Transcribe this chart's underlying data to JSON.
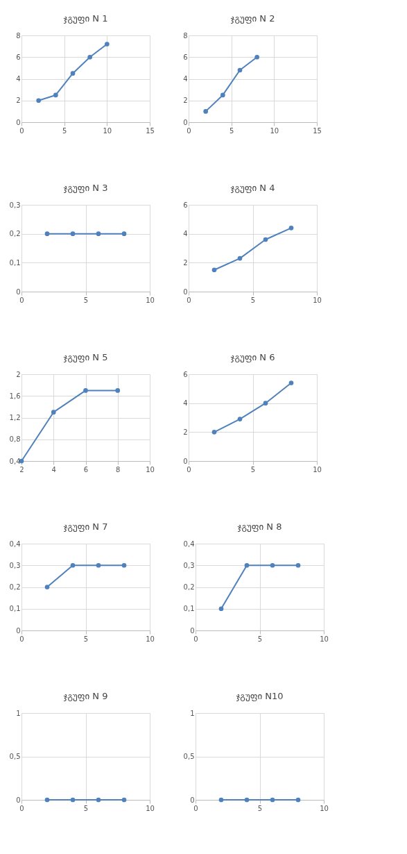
{
  "chart_data": [
    {
      "type": "line",
      "title": "ჯგუფი N 1",
      "x": [
        2,
        4,
        6,
        8,
        10
      ],
      "series": [
        {
          "color": "#4f81bd",
          "values": [
            2,
            2.5,
            4.5,
            6,
            7.2
          ]
        }
      ],
      "xlim": [
        0,
        15
      ],
      "xticks": [
        0,
        5,
        10,
        15
      ],
      "ylim": [
        0,
        8
      ],
      "yticks": [
        0,
        2,
        4,
        6,
        8
      ],
      "grid": true,
      "marker": "circle"
    },
    {
      "type": "line",
      "title": "ჯგუფი N 2",
      "x": [
        2,
        4,
        6,
        8
      ],
      "series": [
        {
          "color": "#4f81bd",
          "values": [
            1,
            2.5,
            4.8,
            6
          ]
        }
      ],
      "xlim": [
        0,
        15
      ],
      "xticks": [
        0,
        5,
        10,
        15
      ],
      "ylim": [
        0,
        8
      ],
      "yticks": [
        0,
        2,
        4,
        6,
        8
      ],
      "grid": true,
      "marker": "circle"
    },
    {
      "type": "line",
      "title": "ჯგუფი N 3",
      "x": [
        2,
        4,
        6,
        8
      ],
      "series": [
        {
          "color": "#4f81bd",
          "values": [
            0.2,
            0.2,
            0.2,
            0.2
          ]
        }
      ],
      "xlim": [
        0,
        10
      ],
      "xticks": [
        0,
        5,
        10
      ],
      "ylim": [
        0,
        0.3
      ],
      "yticks": [
        0,
        {
          "value": 0.1,
          "label": "0,1"
        },
        {
          "value": 0.2,
          "label": "0,2"
        },
        {
          "value": 0.3,
          "label": "0,3"
        }
      ],
      "grid": true,
      "marker": "circle"
    },
    {
      "type": "line",
      "title": "ჯგუფი N 4",
      "x": [
        2,
        4,
        6,
        8
      ],
      "series": [
        {
          "color": "#4f81bd",
          "values": [
            1.5,
            2.3,
            3.6,
            4.4
          ]
        }
      ],
      "xlim": [
        0,
        10
      ],
      "xticks": [
        0,
        5,
        10
      ],
      "ylim": [
        0,
        6
      ],
      "yticks": [
        0,
        2,
        4,
        6
      ],
      "grid": true,
      "marker": "circle"
    },
    {
      "type": "line",
      "title": "ჯგუფი N 5",
      "x": [
        2,
        4,
        6,
        8
      ],
      "series": [
        {
          "color": "#4f81bd",
          "values": [
            0.4,
            1.3,
            1.7,
            1.7
          ]
        }
      ],
      "xlim": [
        2,
        10
      ],
      "xticks": [
        2,
        4,
        6,
        8,
        10
      ],
      "ylim": [
        0.4,
        2
      ],
      "yticks": [
        {
          "value": 0.4,
          "label": "0,4"
        },
        {
          "value": 0.8,
          "label": "0,8"
        },
        {
          "value": 1.2,
          "label": "1,2"
        },
        {
          "value": 1.6,
          "label": "1,6"
        },
        2
      ],
      "grid": true,
      "marker": "circle"
    },
    {
      "type": "line",
      "title": "ჯგუფი N 6",
      "x": [
        2,
        4,
        6,
        8
      ],
      "series": [
        {
          "color": "#4f81bd",
          "values": [
            2,
            2.9,
            4,
            5.4
          ]
        }
      ],
      "xlim": [
        0,
        10
      ],
      "xticks": [
        0,
        5,
        10
      ],
      "ylim": [
        0,
        6
      ],
      "yticks": [
        0,
        2,
        4,
        6
      ],
      "grid": true,
      "marker": "circle"
    },
    {
      "type": "line",
      "title": "ჯგუფი N 7",
      "x": [
        2,
        4,
        6,
        8
      ],
      "series": [
        {
          "color": "#4f81bd",
          "values": [
            0.2,
            0.3,
            0.3,
            0.3
          ]
        }
      ],
      "xlim": [
        0,
        10
      ],
      "xticks": [
        0,
        5,
        10
      ],
      "ylim": [
        0,
        0.4
      ],
      "yticks": [
        0,
        {
          "value": 0.1,
          "label": "0,1"
        },
        {
          "value": 0.2,
          "label": "0,2"
        },
        {
          "value": 0.3,
          "label": "0,3"
        },
        {
          "value": 0.4,
          "label": "0,4"
        }
      ],
      "grid": true,
      "marker": "circle"
    },
    {
      "type": "line",
      "title": "ჯგუფი N 8",
      "x": [
        2,
        4,
        6,
        8
      ],
      "series": [
        {
          "color": "#4f81bd",
          "values": [
            0.1,
            0.3,
            0.3,
            0.3
          ]
        }
      ],
      "xlim": [
        0,
        10
      ],
      "xticks": [
        0,
        5,
        10
      ],
      "ylim": [
        0,
        0.4
      ],
      "yticks": [
        0,
        {
          "value": 0.1,
          "label": "0,1"
        },
        {
          "value": 0.2,
          "label": "0,2"
        },
        {
          "value": 0.3,
          "label": "0,3"
        },
        {
          "value": 0.4,
          "label": "0,4"
        }
      ],
      "grid": true,
      "marker": "circle"
    },
    {
      "type": "line",
      "title": "ჯგუფი N 9",
      "x": [
        2,
        4,
        6,
        8
      ],
      "series": [
        {
          "color": "#4f81bd",
          "values": [
            0,
            0,
            0,
            0
          ]
        }
      ],
      "xlim": [
        0,
        10
      ],
      "xticks": [
        0,
        5,
        10
      ],
      "ylim": [
        0,
        1
      ],
      "yticks": [
        0,
        {
          "value": 0.5,
          "label": "0,5"
        },
        1
      ],
      "grid": true,
      "marker": "circle"
    },
    {
      "type": "line",
      "title": "ჯგუფი N10",
      "x": [
        2,
        4,
        6,
        8
      ],
      "series": [
        {
          "color": "#4f81bd",
          "values": [
            0,
            0,
            0,
            0
          ]
        }
      ],
      "xlim": [
        0,
        10
      ],
      "xticks": [
        0,
        5,
        10
      ],
      "ylim": [
        0,
        1
      ],
      "yticks": [
        0,
        {
          "value": 0.5,
          "label": "0,5"
        },
        1
      ],
      "grid": true,
      "marker": "circle"
    }
  ]
}
